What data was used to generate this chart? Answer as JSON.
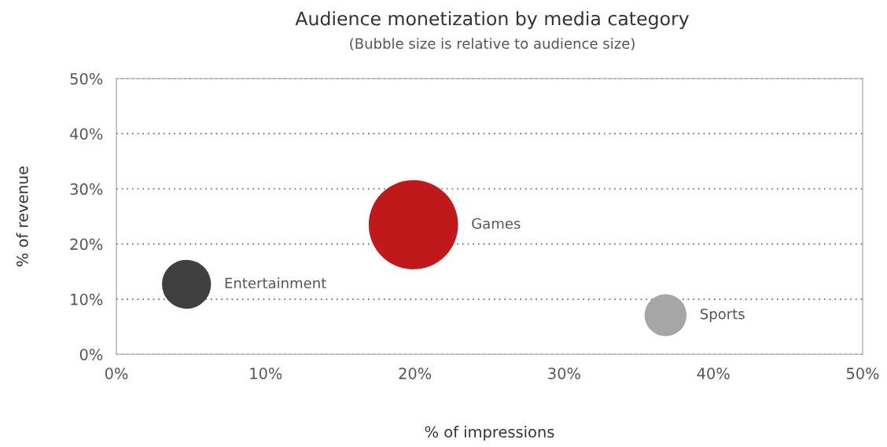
{
  "chart_data": {
    "type": "bubble",
    "title": "Audience monetization by media category",
    "subtitle": "(Bubble size is relative to audience size)",
    "xlabel": "% of impressions",
    "ylabel": "% of revenue",
    "series": [
      {
        "name": "Entertainment",
        "color": "#404040",
        "x": [
          4.7
        ],
        "values": [
          12.7
        ],
        "sizes": [
          0.3
        ]
      },
      {
        "name": "Games",
        "color": "#c0191c",
        "x": [
          19.9
        ],
        "values": [
          23.5
        ],
        "sizes": [
          1
        ]
      },
      {
        "name": "Sports",
        "color": "#a6a6a6",
        "x": [
          36.8
        ],
        "values": [
          7.1
        ],
        "sizes": [
          0.22
        ]
      }
    ],
    "xlim": [
      0,
      50
    ],
    "ylim": [
      0,
      50
    ],
    "xticks": [
      {
        "value": 0,
        "label": "0%"
      },
      {
        "value": 10,
        "label": "10%"
      },
      {
        "value": 20,
        "label": "20%"
      },
      {
        "value": 30,
        "label": "30%"
      },
      {
        "value": 40,
        "label": "40%"
      },
      {
        "value": 50,
        "label": "50%"
      }
    ],
    "yticks": [
      {
        "value": 0,
        "label": "0%"
      },
      {
        "value": 10,
        "label": "10%"
      },
      {
        "value": 20,
        "label": "20%"
      },
      {
        "value": 30,
        "label": "30%"
      },
      {
        "value": 40,
        "label": "40%"
      },
      {
        "value": 50,
        "label": "50%"
      }
    ],
    "grid": "y",
    "legend": false
  }
}
